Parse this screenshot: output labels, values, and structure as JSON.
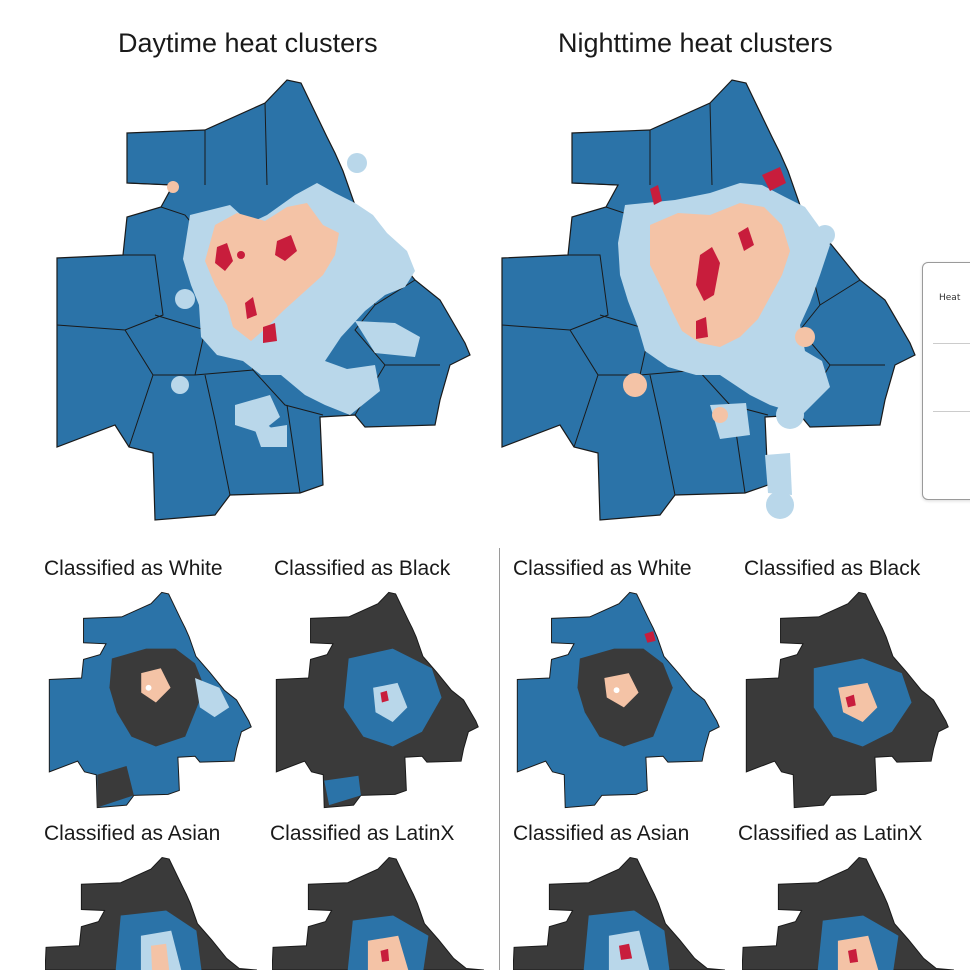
{
  "titles": {
    "day": "Daytime heat clusters",
    "night": "Nighttime heat clusters"
  },
  "small_titles": {
    "day_white": "Classified as White",
    "day_black": "Classified as Black",
    "day_asian": "Classified as Asian",
    "day_latinx": "Classified as LatinX",
    "night_white": "Classified as White",
    "night_black": "Classified as Black",
    "night_asian": "Classified as Asian",
    "night_latinx": "Classified as LatinX"
  },
  "legend": {
    "partial_text": "Heat"
  },
  "colors": {
    "heat_low": "#2b73a8",
    "heat_mid_low": "#b9d7ea",
    "heat_mid_high": "#f4c3a6",
    "heat_high": "#c81d3c",
    "non_group": "#3a3a3a",
    "boundary": "#1a1a1a"
  }
}
